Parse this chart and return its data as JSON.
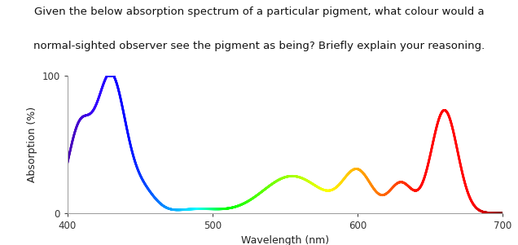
{
  "title_line1": "Given the below absorption spectrum of a particular pigment, what colour would a",
  "title_line2": "normal-sighted observer see the pigment as being? Briefly explain your reasoning.",
  "xlabel": "Wavelength (nm)",
  "ylabel": "Absorption (%)",
  "xlim": [
    400,
    700
  ],
  "ylim": [
    0,
    100
  ],
  "xticks": [
    400,
    500,
    600,
    700
  ],
  "yticks": [
    0,
    100
  ],
  "title_fontsize": 9.5,
  "axis_fontsize": 9,
  "background_color": "#ffffff",
  "fig_width": 6.36,
  "fig_height": 3.01
}
